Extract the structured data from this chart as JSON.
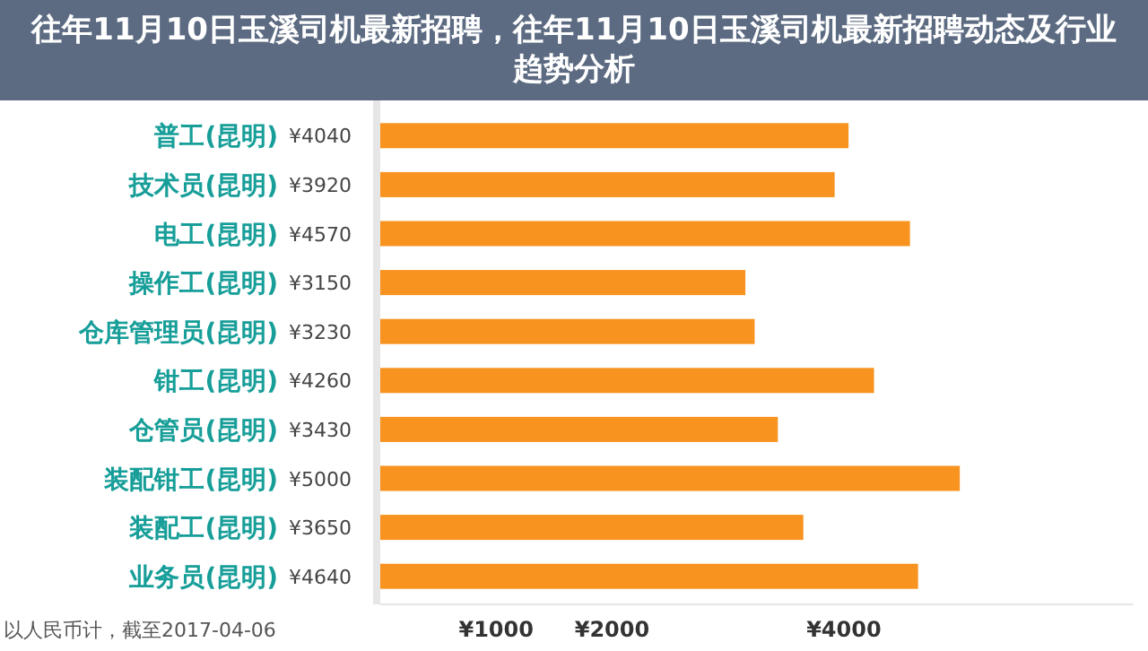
{
  "chart_data": {
    "type": "bar",
    "orientation": "horizontal",
    "title": "往年11月10日玉溪司机最新招聘，往年11月10日玉溪司机最新招聘动态及行业趋势分析",
    "categories": [
      "普工(昆明)",
      "技术员(昆明)",
      "电工(昆明)",
      "操作工(昆明)",
      "仓库管理员(昆明)",
      "钳工(昆明)",
      "仓管员(昆明)",
      "装配钳工(昆明)",
      "装配工(昆明)",
      "业务员(昆明)"
    ],
    "values": [
      4040,
      3920,
      4570,
      3150,
      3230,
      4260,
      3430,
      5000,
      3650,
      4640
    ],
    "value_labels": [
      "¥4040",
      "¥3920",
      "¥4570",
      "¥3150",
      "¥3230",
      "¥4260",
      "¥3430",
      "¥5000",
      "¥3650",
      "¥4640"
    ],
    "color": "#f8931f",
    "xlim": [
      0,
      6500
    ],
    "xticks": [
      {
        "value": 1000,
        "label": "¥1000"
      },
      {
        "value": 2000,
        "label": "¥2000"
      },
      {
        "value": 4000,
        "label": "¥4000"
      }
    ],
    "annotations": [
      "以人民币计，截至2017-04-06"
    ]
  }
}
